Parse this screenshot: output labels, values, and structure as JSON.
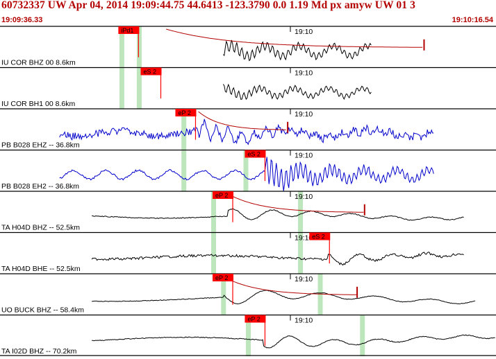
{
  "header": {
    "title": "60732337 UW Apr 04, 2014 19:09:44.75   44.6413 -123.3790  0.0 1.19 Md px amyw UW 01   3",
    "time_start": "19:09:36.33",
    "time_end": "19:10:16.54"
  },
  "colors": {
    "header_text": "#b30000",
    "trace_black": "#000000",
    "trace_blue": "#0000cc",
    "pick_box": "#ff0000",
    "window_band": "#bde6bd",
    "coda_fit": "#b30000"
  },
  "minute_marker": "19:10",
  "panels": [
    {
      "label": "IU COR BHZ 00 8.6km",
      "color": "black",
      "start": 0.45,
      "end": 0.75,
      "onset": 0.335,
      "amp": 0.7,
      "freq": 0.85,
      "noise": 0.02,
      "pick": "iPd1",
      "pick_pos": 0.24,
      "windows": [
        0.245,
        0.28
      ],
      "coda": true,
      "coda_end": 0.855
    },
    {
      "label": "IU COR BH1 00 8.6km",
      "color": "black",
      "start": 0.45,
      "end": 0.75,
      "onset": 0.32,
      "amp": 0.55,
      "freq": 0.85,
      "noise": 0.02,
      "pick": "eS 2",
      "pick_pos": 0.285,
      "windows": [
        0.245,
        0.28
      ],
      "coda": false
    },
    {
      "label": "PB B028 EHZ -- 36.8km",
      "color": "blue",
      "start": 0.12,
      "end": 0.875,
      "onset": 0.4,
      "amp": 0.45,
      "freq": 0.35,
      "noise": 0.18,
      "pick": "eP 2",
      "pick_pos": 0.355,
      "windows": [
        0.37
      ],
      "coda": true,
      "coda_end": 0.58
    },
    {
      "label": "PB B028 EH2 -- 36.8km",
      "color": "blue",
      "start": 0.12,
      "end": 0.875,
      "onset": 0.535,
      "amp": 0.7,
      "freq": 0.9,
      "noise": 0.05,
      "pick": "eS 2",
      "pick_pos": 0.495,
      "windows": [
        0.37,
        0.495
      ],
      "coda": false
    },
    {
      "label": "TA H04D BHZ -- 52.5km",
      "color": "black",
      "start": 0.185,
      "end": 0.935,
      "onset": 0.46,
      "amp": 0.35,
      "freq": 0.11,
      "noise": 0.02,
      "pick": "eP 2",
      "pick_pos": 0.43,
      "windows": [
        0.43,
        0.605
      ],
      "coda": true,
      "coda_end": 0.735
    },
    {
      "label": "TA H04D BHE -- 52.5km",
      "color": "black",
      "start": 0.185,
      "end": 0.935,
      "onset": 0.66,
      "amp": 0.3,
      "freq": 0.13,
      "noise": 0.06,
      "pick": "eS 2",
      "pick_pos": 0.625,
      "windows": [
        0.43,
        0.605
      ],
      "coda": false
    },
    {
      "label": "UO BUCK BHZ -- 58.4km",
      "color": "black",
      "start": 0.185,
      "end": 0.96,
      "onset": 0.45,
      "amp": 0.45,
      "freq": 0.08,
      "noise": 0.015,
      "pick": "eP 2",
      "pick_pos": 0.43,
      "windows": [
        0.45,
        0.645
      ],
      "coda": true,
      "coda_end": 0.72
    },
    {
      "label": "TA I02D BHZ -- 70.2km",
      "color": "black",
      "start": 0.185,
      "end": 1.0,
      "onset": 0.53,
      "amp": 0.4,
      "freq": 0.1,
      "noise": 0.02,
      "pick": "eP 2",
      "pick_pos": 0.495,
      "windows": [
        0.5,
        0.73
      ],
      "coda": false
    }
  ]
}
